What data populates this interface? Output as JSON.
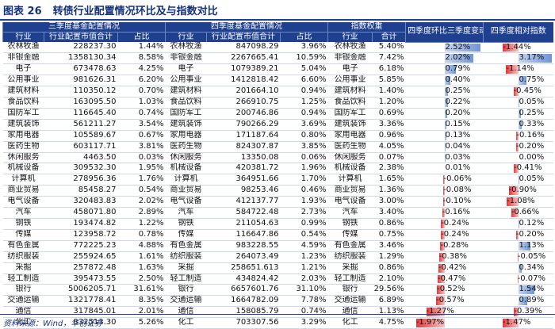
{
  "figure": {
    "label": "图表 26",
    "title": "转债行业配置情况环比及与指数对比"
  },
  "headers": {
    "q3_group": "三季度基金配置情况",
    "q4_group": "四季度基金配置情况",
    "index_group": "指数权重",
    "industry": "行业",
    "market_value": "行业配置市值合计",
    "share": "占比",
    "total": "合计",
    "qoq_change": "四季度环比三季度变动",
    "rel_index": "四季度相对指数"
  },
  "colors": {
    "header_bg": "#1f3f8f",
    "positive_bar": "#6f95d4",
    "negative_bar": "#e23a3a"
  },
  "rows": [
    {
      "q3_ind": "农林牧渔",
      "q3_val": "228237.30",
      "q3_pct": "1.44%",
      "q4_ind": "农林牧渔",
      "q4_val": "847098.29",
      "q4_pct": "3.96%",
      "idx_ind": "农林牧渔",
      "idx_pct": "5.40%",
      "chg": 2.52,
      "chg_label": "2.52%",
      "rel": -1.44,
      "rel_label": "-1.44%"
    },
    {
      "q3_ind": "非银金融",
      "q3_val": "1358130.34",
      "q3_pct": "8.58%",
      "q4_ind": "非银金融",
      "q4_val": "2267665.41",
      "q4_pct": "10.59%",
      "idx_ind": "非银金融",
      "idx_pct": "7.42%",
      "chg": 2.02,
      "chg_label": "2.02%",
      "rel": 3.17,
      "rel_label": "3.17%"
    },
    {
      "q3_ind": "电子",
      "q3_val": "673478.63",
      "q3_pct": "4.25%",
      "q4_ind": "电子",
      "q4_val": "1079389.21",
      "q4_pct": "5.04%",
      "idx_ind": "电子",
      "idx_pct": "6.18%",
      "chg": 0.79,
      "chg_label": "0.79%",
      "rel": -1.14,
      "rel_label": "-1.14%"
    },
    {
      "q3_ind": "公用事业",
      "q3_val": "981626.31",
      "q3_pct": "6.20%",
      "q4_ind": "公用事业",
      "q4_val": "1412818.42",
      "q4_pct": "6.60%",
      "idx_ind": "公用事业",
      "idx_pct": "5.85%",
      "chg": 0.4,
      "chg_label": "0.40%",
      "rel": 0.75,
      "rel_label": "0.75%"
    },
    {
      "q3_ind": "建筑材料",
      "q3_val": "110350.12",
      "q3_pct": "0.70%",
      "q4_ind": "建筑材料",
      "q4_val": "201664.10",
      "q4_pct": "0.94%",
      "idx_ind": "建筑材料",
      "idx_pct": "1.40%",
      "chg": 0.25,
      "chg_label": "0.25%",
      "rel": -0.45,
      "rel_label": "-0.45%"
    },
    {
      "q3_ind": "食品饮料",
      "q3_val": "163095.50",
      "q3_pct": "1.03%",
      "q4_ind": "食品饮料",
      "q4_val": "266910.75",
      "q4_pct": "1.25%",
      "idx_ind": "食品饮料",
      "idx_pct": "1.20%",
      "chg": 0.22,
      "chg_label": "0.22%",
      "rel": 0.05,
      "rel_label": "0.05%"
    },
    {
      "q3_ind": "国防军工",
      "q3_val": "116645.40",
      "q3_pct": "0.74%",
      "q4_ind": "国防军工",
      "q4_val": "200746.86",
      "q4_pct": "0.94%",
      "idx_ind": "国防军工",
      "idx_pct": "0.69%",
      "chg": 0.2,
      "chg_label": "0.20%",
      "rel": 0.25,
      "rel_label": "0.25%"
    },
    {
      "q3_ind": "建筑装饰",
      "q3_val": "561211.27",
      "q3_pct": "3.54%",
      "q4_ind": "建筑装饰",
      "q4_val": "790266.29",
      "q4_pct": "3.69%",
      "idx_ind": "建筑装饰",
      "idx_pct": "3.36%",
      "chg": 0.15,
      "chg_label": "0.15%",
      "rel": 0.33,
      "rel_label": "0.33%"
    },
    {
      "q3_ind": "家用电器",
      "q3_val": "105589.67",
      "q3_pct": "0.67%",
      "q4_ind": "家用电器",
      "q4_val": "171187.64",
      "q4_pct": "0.80%",
      "idx_ind": "家用电器",
      "idx_pct": "0.96%",
      "chg": 0.13,
      "chg_label": "0.13%",
      "rel": -0.16,
      "rel_label": "-0.16%"
    },
    {
      "q3_ind": "医药生物",
      "q3_val": "603117.71",
      "q3_pct": "3.81%",
      "q4_ind": "医药生物",
      "q4_val": "824307.87",
      "q4_pct": "3.85%",
      "idx_ind": "医药生物",
      "idx_pct": "4.05%",
      "chg": 0.04,
      "chg_label": "0.04%",
      "rel": -0.2,
      "rel_label": "-0.20%"
    },
    {
      "q3_ind": "休闲服务",
      "q3_val": "4463.50",
      "q3_pct": "0.03%",
      "q4_ind": "休闲服务",
      "q4_val": "13350.08",
      "q4_pct": "0.06%",
      "idx_ind": "休闲服务",
      "idx_pct": "0.07%",
      "chg": 0.03,
      "chg_label": "0.03%",
      "rel": 0.0,
      "rel_label": "0.00%"
    },
    {
      "q3_ind": "机械设备",
      "q3_val": "309532.30",
      "q3_pct": "1.95%",
      "q4_ind": "机械设备",
      "q4_val": "420381.72",
      "q4_pct": "1.96%",
      "idx_ind": "机械设备",
      "idx_pct": "2.38%",
      "chg": 0.01,
      "chg_label": "0.01%",
      "rel": -0.41,
      "rel_label": "-0.41%"
    },
    {
      "q3_ind": "计算机",
      "q3_val": "278956.36",
      "q3_pct": "1.76%",
      "q4_ind": "计算机",
      "q4_val": "364951.66",
      "q4_pct": "1.70%",
      "idx_ind": "计算机",
      "idx_pct": "1.65%",
      "chg": -0.06,
      "chg_label": "-0.06%",
      "rel": 0.05,
      "rel_label": "0.05%"
    },
    {
      "q3_ind": "商业贸易",
      "q3_val": "85458.27",
      "q3_pct": "0.54%",
      "q4_ind": "商业贸易",
      "q4_val": "98253.46",
      "q4_pct": "0.46%",
      "idx_ind": "商业贸易",
      "idx_pct": "1.36%",
      "chg": -0.08,
      "chg_label": "-0.08%",
      "rel": -0.9,
      "rel_label": "-0.90%"
    },
    {
      "q3_ind": "电气设备",
      "q3_val": "320483.83",
      "q3_pct": "2.02%",
      "q4_ind": "电气设备",
      "q4_val": "412137.77",
      "q4_pct": "1.93%",
      "idx_ind": "电气设备",
      "idx_pct": "3.00%",
      "chg": -0.1,
      "chg_label": "-0.10%",
      "rel": -1.08,
      "rel_label": "-1.08%"
    },
    {
      "q3_ind": "汽车",
      "q3_val": "458071.80",
      "q3_pct": "2.89%",
      "q4_ind": "汽车",
      "q4_val": "584722.48",
      "q4_pct": "2.73%",
      "idx_ind": "汽车",
      "idx_pct": "3.40%",
      "chg": -0.16,
      "chg_label": "-0.16%",
      "rel": -0.66,
      "rel_label": "-0.66%"
    },
    {
      "q3_ind": "钢铁",
      "q3_val": "193474.82",
      "q3_pct": "1.22%",
      "q4_ind": "钢铁",
      "q4_val": "211054.63",
      "q4_pct": "0.99%",
      "idx_ind": "钢铁",
      "idx_pct": "0.86%",
      "chg": -0.24,
      "chg_label": "-0.24%",
      "rel": 0.12,
      "rel_label": "0.12%"
    },
    {
      "q3_ind": "传媒",
      "q3_val": "123958.72",
      "q3_pct": "0.78%",
      "q4_ind": "传媒",
      "q4_val": "116647.86",
      "q4_pct": "0.54%",
      "idx_ind": "传媒",
      "idx_pct": "0.75%",
      "chg": -0.24,
      "chg_label": "-0.24%",
      "rel": -0.2,
      "rel_label": "-0.20%"
    },
    {
      "q3_ind": "有色金属",
      "q3_val": "772225.23",
      "q3_pct": "4.88%",
      "q4_ind": "有色金属",
      "q4_val": "983228.55",
      "q4_pct": "4.59%",
      "idx_ind": "有色金属",
      "idx_pct": "3.46%",
      "chg": -0.28,
      "chg_label": "-0.28%",
      "rel": 1.13,
      "rel_label": "1.13%"
    },
    {
      "q3_ind": "纺织服装",
      "q3_val": "255924.65",
      "q3_pct": "1.61%",
      "q4_ind": "纺织服装",
      "q4_val": "264073.49",
      "q4_pct": "1.23%",
      "idx_ind": "纺织服装",
      "idx_pct": "1.29%",
      "chg": -0.38,
      "chg_label": "-0.38%",
      "rel": -0.05,
      "rel_label": "-0.05%"
    },
    {
      "q3_ind": "采掘",
      "q3_val": "257872.48",
      "q3_pct": "1.63%",
      "q4_ind": "采掘",
      "q4_val": "258651.613",
      "q4_pct": "1.21%",
      "idx_ind": "采掘",
      "idx_pct": "0.86%",
      "chg": -0.42,
      "chg_label": "-0.42%",
      "rel": 0.34,
      "rel_label": "0.34%"
    },
    {
      "q3_ind": "轻工制造",
      "q3_val": "395473.55",
      "q3_pct": "2.50%",
      "q4_ind": "轻工制造",
      "q4_val": "434824.42",
      "q4_pct": "2.03%",
      "idx_ind": "轻工制造",
      "idx_pct": "2.10%",
      "chg": -0.47,
      "chg_label": "-0.47%",
      "rel": -0.07,
      "rel_label": "-0.07%"
    },
    {
      "q3_ind": "银行",
      "q3_val": "5006205.71",
      "q3_pct": "31.61%",
      "q4_ind": "银行",
      "q4_val": "6657601.76",
      "q4_pct": "31.10%",
      "idx_ind": "银行",
      "idx_pct": "29.56%",
      "chg": -0.52,
      "chg_label": "-0.52%",
      "rel": 1.54,
      "rel_label": "1.54%"
    },
    {
      "q3_ind": "交通运输",
      "q3_val": "1321778.41",
      "q3_pct": "8.35%",
      "q4_ind": "交通运输",
      "q4_val": "1664782.09",
      "q4_pct": "7.78%",
      "idx_ind": "交通运输",
      "idx_pct": "6.89%",
      "chg": -0.57,
      "chg_label": "-0.57%",
      "rel": 0.89,
      "rel_label": "0.89%"
    },
    {
      "q3_ind": "通信",
      "q3_val": "317845.01",
      "q3_pct": "2.01%",
      "q4_ind": "通信",
      "q4_val": "158085.79",
      "q4_pct": "0.74%",
      "idx_ind": "通信",
      "idx_pct": "1.13%",
      "chg": -1.27,
      "chg_label": "-1.27%",
      "rel": -0.39,
      "rel_label": "-0.39%"
    },
    {
      "q3_ind": "化工",
      "q3_val": "832513.30",
      "q3_pct": "5.26%",
      "q4_ind": "化工",
      "q4_val": "703307.56",
      "q4_pct": "3.29%",
      "idx_ind": "化工",
      "idx_pct": "4.75%",
      "chg": -1.97,
      "chg_label": "-1.97%",
      "rel": -1.47,
      "rel_label": "-1.47%"
    }
  ],
  "source": "资料来源：Wind，华创证券"
}
